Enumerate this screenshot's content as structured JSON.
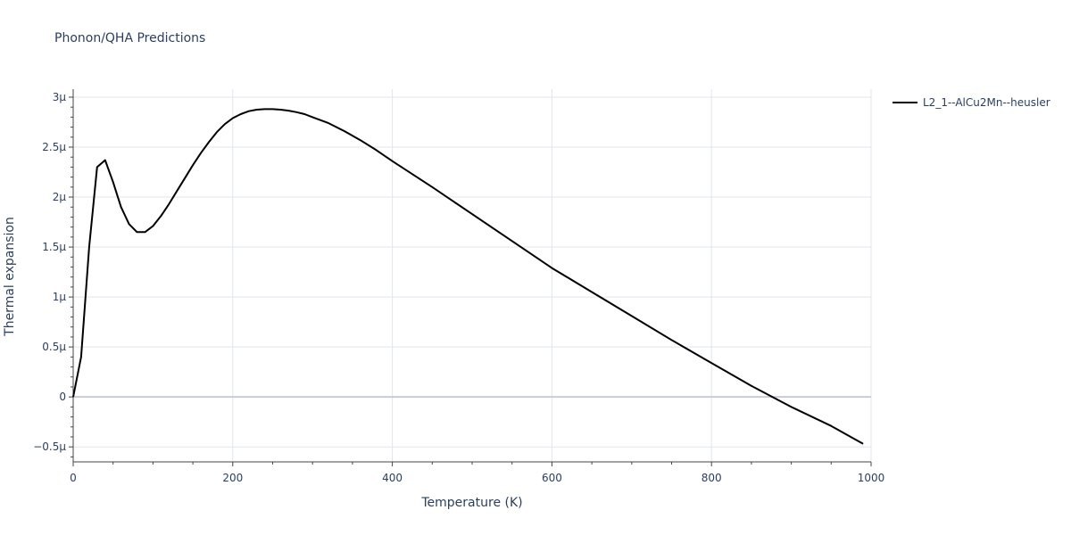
{
  "chart_data": {
    "type": "line",
    "title": "Phonon/QHA Predictions",
    "xlabel": "Temperature (K)",
    "ylabel": "Thermal expansion",
    "xlim": [
      0,
      1000
    ],
    "ylim": [
      -0.65,
      3.08
    ],
    "x_ticks": [
      0,
      200,
      400,
      600,
      800,
      1000
    ],
    "x_tick_labels": [
      "0",
      "200",
      "400",
      "600",
      "800",
      "1000"
    ],
    "y_ticks": [
      -0.5,
      0,
      0.5,
      1,
      1.5,
      2,
      2.5,
      3
    ],
    "y_tick_labels": [
      "−0.5μ",
      "0",
      "0.5μ",
      "1μ",
      "1.5μ",
      "2μ",
      "2.5μ",
      "3μ"
    ],
    "y_unit_multiplier": "1e-6",
    "grid": true,
    "legend_position": "top-right",
    "series": [
      {
        "name": "L2_1--AlCu2Mn--heusler",
        "color": "#000000",
        "x": [
          0,
          10,
          20,
          30,
          40,
          50,
          60,
          70,
          80,
          90,
          100,
          110,
          120,
          130,
          140,
          150,
          160,
          170,
          180,
          190,
          200,
          210,
          220,
          230,
          240,
          250,
          260,
          270,
          280,
          290,
          300,
          320,
          340,
          360,
          380,
          400,
          450,
          500,
          550,
          600,
          650,
          700,
          750,
          800,
          850,
          900,
          950,
          990
        ],
        "y": [
          0.0,
          0.4,
          1.5,
          2.3,
          2.37,
          2.15,
          1.9,
          1.73,
          1.65,
          1.65,
          1.71,
          1.81,
          1.93,
          2.06,
          2.19,
          2.32,
          2.44,
          2.55,
          2.65,
          2.73,
          2.79,
          2.83,
          2.86,
          2.875,
          2.88,
          2.88,
          2.875,
          2.865,
          2.85,
          2.83,
          2.8,
          2.74,
          2.66,
          2.57,
          2.47,
          2.36,
          2.1,
          1.83,
          1.56,
          1.29,
          1.05,
          0.81,
          0.57,
          0.34,
          0.11,
          -0.1,
          -0.29,
          -0.47
        ]
      }
    ]
  }
}
